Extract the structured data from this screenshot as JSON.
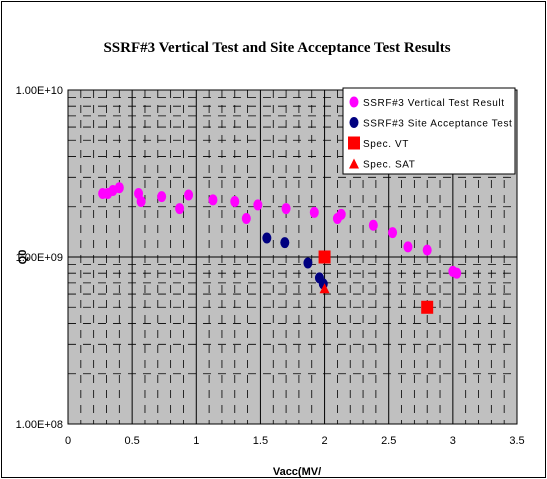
{
  "chart_data": {
    "type": "scatter",
    "title": "SSRF#3 Vertical Test and Site Acceptance Test Results",
    "xlabel": "Vacc(MV/",
    "ylabel": "Q0",
    "xlim": [
      0,
      3.5
    ],
    "ylim": [
      100000000,
      10000000000
    ],
    "yscale": "log",
    "grid": "major and minor dashed",
    "plot_background": "#c0c0c0",
    "legend_position": "top-right",
    "x_ticks": [
      "0",
      "0.5",
      "1",
      "1.5",
      "2",
      "2.5",
      "3",
      "3.5"
    ],
    "y_ticks": [
      "1.00E+08",
      "1.00E+09",
      "1.00E+10"
    ],
    "series": [
      {
        "name": "SSRF#3 Vertical Test Result",
        "marker": "circle",
        "color": "#ff00ff",
        "points": [
          [
            0.27,
            2400000000
          ],
          [
            0.31,
            2400000000
          ],
          [
            0.35,
            2500000000
          ],
          [
            0.4,
            2600000000
          ],
          [
            0.55,
            2400000000
          ],
          [
            0.57,
            2150000000
          ],
          [
            0.73,
            2300000000
          ],
          [
            0.87,
            1950000000
          ],
          [
            0.94,
            2350000000
          ],
          [
            1.13,
            2200000000
          ],
          [
            1.3,
            2150000000
          ],
          [
            1.39,
            1700000000
          ],
          [
            1.48,
            2050000000
          ],
          [
            1.7,
            1950000000
          ],
          [
            1.92,
            1850000000
          ],
          [
            2.1,
            1700000000
          ],
          [
            2.13,
            1800000000
          ],
          [
            2.38,
            1550000000
          ],
          [
            2.53,
            1400000000
          ],
          [
            2.65,
            1150000000
          ],
          [
            2.8,
            1100000000
          ],
          [
            3.0,
            820000000
          ],
          [
            3.03,
            800000000
          ]
        ]
      },
      {
        "name": "SSRF#3 Site Acceptance Test",
        "marker": "circle",
        "color": "#000080",
        "points": [
          [
            1.55,
            1300000000
          ],
          [
            1.69,
            1220000000
          ],
          [
            1.87,
            920000000
          ],
          [
            1.96,
            750000000
          ],
          [
            1.99,
            690000000
          ]
        ]
      },
      {
        "name": "Spec. VT",
        "marker": "square",
        "color": "#ff0000",
        "points": [
          [
            2.0,
            1000000000
          ],
          [
            2.8,
            500000000
          ]
        ]
      },
      {
        "name": "Spec. SAT",
        "marker": "triangle",
        "color": "#ff0000",
        "points": [
          [
            2.0,
            650000000
          ]
        ]
      }
    ]
  }
}
